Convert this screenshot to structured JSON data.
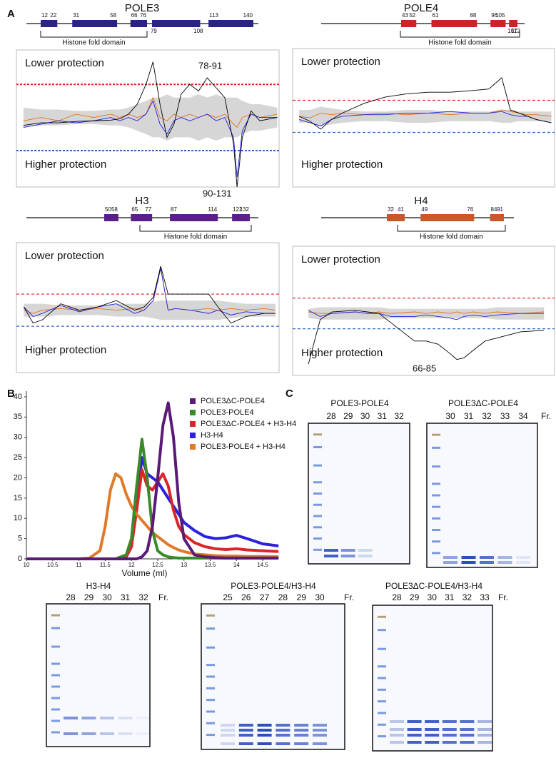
{
  "panel_labels": [
    "A",
    "B",
    "C"
  ],
  "chart_data": [
    {
      "type": "line",
      "title": "POLE3",
      "domains": [
        [
          12,
          22
        ],
        [
          31,
          58
        ],
        [
          66,
          76
        ],
        [
          79,
          108
        ],
        [
          113,
          140
        ]
      ],
      "domain_color": "#2b2382",
      "fold_label": "Histone fold domain",
      "upper_label": "Lower protection",
      "lower_label": "Higher protection",
      "annotations": [
        "78-91",
        "90-131"
      ],
      "x": [
        0,
        10,
        20,
        30,
        40,
        50,
        55,
        60,
        65,
        70,
        74,
        78,
        82,
        86,
        90,
        95,
        100,
        105,
        110,
        115,
        120,
        122,
        125,
        130,
        135,
        145
      ],
      "xlim": [
        -4,
        146
      ],
      "ylim": [
        -1.05,
        1.02
      ],
      "thresholds": [
        {
          "value": 0.5,
          "color": "#e02020"
        },
        {
          "value": -0.5,
          "color": "#2a66c0"
        }
      ],
      "band": {
        "color": "#d6d6d6",
        "values": [
          0.15,
          0.12,
          0.12,
          0.1,
          0.1,
          0.12,
          0.12,
          0.15,
          0.2,
          0.25,
          0.3,
          0.3,
          0.35,
          0.3,
          0.3,
          0.3,
          0.35,
          0.3,
          0.35,
          0.3,
          0.3,
          0.3,
          0.25,
          0.2,
          0.2,
          0.15
        ]
      },
      "series": [
        {
          "color": "#e8701e",
          "values": [
            -0.05,
            0.0,
            -0.05,
            0.05,
            0.0,
            0.05,
            0.0,
            0.05,
            0.0,
            0.05,
            0.3,
            0.0,
            -0.05,
            0.05,
            0.0,
            0.05,
            0.0,
            0.05,
            0.0,
            0.05,
            -0.1,
            -0.15,
            0.0,
            0.05,
            0.0,
            0.05
          ]
        },
        {
          "color": "#2020e0",
          "values": [
            -0.15,
            -0.1,
            -0.05,
            -0.08,
            -0.05,
            0.0,
            -0.05,
            0.0,
            -0.05,
            0.05,
            0.25,
            -0.1,
            -0.25,
            -0.05,
            0.0,
            -0.05,
            0.0,
            0.05,
            -0.05,
            0.0,
            -0.3,
            -0.9,
            -0.2,
            0.05,
            0.0,
            0.0
          ]
        },
        {
          "color": "#000000",
          "values": [
            -0.12,
            -0.08,
            -0.08,
            -0.06,
            -0.05,
            -0.04,
            -0.02,
            0.05,
            0.2,
            0.5,
            0.84,
            0.2,
            -0.3,
            -0.1,
            0.35,
            0.5,
            0.4,
            0.6,
            0.45,
            0.3,
            -0.4,
            -1.05,
            -0.3,
            0.1,
            -0.05,
            0.0
          ]
        }
      ]
    },
    {
      "type": "line",
      "title": "POLE4",
      "domains": [
        [
          43,
          52
        ],
        [
          61,
          88
        ],
        [
          96,
          105
        ],
        [
          107,
          112
        ]
      ],
      "domain_color": "#c8252b",
      "fold_label": "Histone fold domain",
      "upper_label": "Lower protection",
      "lower_label": "Higher protection",
      "annotations": [],
      "x": [
        0,
        5,
        10,
        15,
        20,
        30,
        40,
        50,
        60,
        70,
        80,
        88,
        94,
        98,
        102,
        106,
        110,
        117
      ],
      "xlim": [
        -3,
        118.5
      ],
      "ylim": [
        -2.2,
        2.11
      ],
      "thresholds": [
        {
          "value": 0.5,
          "color": "#e02020"
        },
        {
          "value": -0.5,
          "color": "#2a66c0"
        }
      ],
      "band": {
        "color": "#d6d6d6",
        "values": [
          0.2,
          0.2,
          0.3,
          0.25,
          0.2,
          0.15,
          0.15,
          0.2,
          0.2,
          0.15,
          0.15,
          0.15,
          0.2,
          0.2,
          0.15,
          0.15,
          0.15,
          0.15
        ]
      },
      "series": [
        {
          "color": "#e8701e",
          "values": [
            0.0,
            -0.05,
            0.1,
            0.05,
            0.1,
            0.05,
            0.1,
            0.05,
            0.1,
            0.05,
            0.1,
            0.1,
            0.2,
            0.15,
            0.1,
            0.05,
            0.05,
            0.0
          ]
        },
        {
          "color": "#2020e0",
          "values": [
            -0.1,
            -0.2,
            -0.3,
            -0.1,
            0.0,
            0.05,
            0.05,
            0.1,
            0.1,
            0.15,
            0.1,
            0.1,
            0.15,
            0.05,
            0.0,
            0.0,
            -0.1,
            -0.2
          ]
        },
        {
          "color": "#000000",
          "values": [
            0.0,
            -0.15,
            -0.4,
            -0.1,
            0.1,
            0.4,
            0.6,
            0.7,
            0.75,
            0.75,
            0.8,
            0.85,
            1.2,
            0.2,
            0.1,
            0.0,
            -0.1,
            -0.2
          ]
        }
      ]
    },
    {
      "type": "line",
      "title": "H3",
      "domains": [
        [
          50,
          58
        ],
        [
          65,
          77
        ],
        [
          87,
          114
        ],
        [
          122,
          132
        ]
      ],
      "domain_color": "#5a1f8a",
      "fold_label": "Histone fold domain",
      "upper_label": "Lower protection",
      "lower_label": "Higher protection",
      "annotations": [],
      "x": [
        0,
        5,
        10,
        20,
        30,
        40,
        50,
        60,
        65,
        70,
        74,
        78,
        82,
        90,
        100,
        105,
        112,
        120,
        130,
        136
      ],
      "xlim": [
        -4,
        138
      ],
      "ylim": [
        -1.94,
        2.1
      ],
      "thresholds": [
        {
          "value": 0.5,
          "color": "#e02020"
        },
        {
          "value": -0.5,
          "color": "#2a66c0"
        }
      ],
      "band": {
        "color": "#d6d6d6",
        "values": [
          0.2,
          0.2,
          0.2,
          0.15,
          0.15,
          0.15,
          0.2,
          0.2,
          0.2,
          0.25,
          0.3,
          0.3,
          0.3,
          0.3,
          0.3,
          0.3,
          0.25,
          0.2,
          0.2,
          0.2
        ]
      },
      "series": [
        {
          "color": "#e8701e",
          "values": [
            0.0,
            -0.1,
            0.0,
            0.05,
            0.0,
            0.05,
            0.0,
            0.05,
            0.0,
            0.3,
            1.32,
            0.0,
            0.05,
            0.0,
            0.05,
            0.0,
            0.05,
            0.0,
            0.05,
            0.0
          ]
        },
        {
          "color": "#2020e0",
          "values": [
            0.1,
            -0.2,
            -0.1,
            0.15,
            -0.05,
            0.1,
            0.2,
            -0.1,
            0.0,
            0.3,
            1.3,
            0.0,
            0.05,
            0.0,
            -0.1,
            0.0,
            -0.15,
            -0.05,
            -0.1,
            -0.1
          ]
        },
        {
          "color": "#000000",
          "values": [
            0.1,
            -0.4,
            -0.3,
            0.2,
            0.0,
            0.1,
            0.3,
            0.0,
            0.1,
            0.4,
            1.37,
            0.5,
            0.5,
            0.5,
            0.5,
            0.1,
            -0.4,
            -0.2,
            -0.1,
            -0.1
          ]
        }
      ]
    },
    {
      "type": "line",
      "title": "H4",
      "domains": [
        [
          32,
          41
        ],
        [
          49,
          76
        ],
        [
          84,
          91
        ]
      ],
      "domain_color": "#c8582a",
      "fold_label": "Histone fold domain",
      "upper_label": "Lower protection",
      "lower_label": "Higher protection",
      "annotations": [
        "66-85"
      ],
      "x": [
        0,
        5,
        10,
        20,
        25,
        30,
        35,
        45,
        50,
        55,
        60,
        63,
        66,
        70,
        75,
        80,
        90,
        100
      ],
      "xlim": [
        -6.7,
        104.5
      ],
      "ylim": [
        -2.02,
        2.19
      ],
      "thresholds": [
        {
          "value": 0.5,
          "color": "#e02020"
        },
        {
          "value": -0.5,
          "color": "#2a66c0"
        }
      ],
      "band": {
        "color": "#d6d6d6",
        "values": [
          0.15,
          0.2,
          0.2,
          0.2,
          0.2,
          0.2,
          0.15,
          0.15,
          0.15,
          0.15,
          0.15,
          0.15,
          0.15,
          0.15,
          0.15,
          0.2,
          0.2,
          0.2
        ]
      },
      "series": [
        {
          "color": "#e8701e",
          "values": [
            0.05,
            0.0,
            0.0,
            0.05,
            0.0,
            0.05,
            0.0,
            0.05,
            0.0,
            0.05,
            0.0,
            0.05,
            0.0,
            0.05,
            0.0,
            0.05,
            0.0,
            0.05
          ]
        },
        {
          "color": "#2020e0",
          "values": [
            0.1,
            -0.1,
            0.0,
            0.05,
            0.0,
            0.0,
            -0.1,
            -0.1,
            -0.05,
            -0.1,
            -0.15,
            -0.2,
            -0.1,
            -0.05,
            -0.1,
            -0.05,
            0.0,
            0.0
          ]
        },
        {
          "color": "#000000",
          "values": [
            -1.65,
            -0.2,
            0.05,
            0.1,
            0.05,
            0.0,
            -0.3,
            -0.9,
            -0.9,
            -1.0,
            -1.3,
            -1.5,
            -1.45,
            -1.2,
            -0.9,
            -0.8,
            -0.6,
            -0.55
          ]
        }
      ]
    },
    {
      "type": "line",
      "xlabel": "Volume (ml)",
      "x": [
        10,
        10.5,
        11,
        11.2,
        11.4,
        11.5,
        11.6,
        11.7,
        11.8,
        11.9,
        12,
        12.1,
        12.2,
        12.3,
        12.4,
        12.5,
        12.6,
        12.7,
        12.8,
        12.9,
        13,
        13.2,
        13.4,
        13.6,
        13.8,
        14,
        14.2,
        14.5,
        14.8
      ],
      "xlim": [
        10,
        14.77
      ],
      "ylim": [
        0,
        41.4
      ],
      "xticks": [
        10,
        10.5,
        11,
        11.5,
        12,
        12.5,
        13,
        13.5,
        14,
        14.5
      ],
      "yticks": [
        0,
        5,
        10,
        15,
        20,
        25,
        30,
        35,
        40
      ],
      "series": [
        {
          "name": "POLE3ΔC-POLE4",
          "color": "#5a1a78",
          "values": [
            0,
            0,
            0,
            0,
            0,
            0,
            0,
            0,
            0,
            0,
            0,
            0,
            0.5,
            2,
            8,
            20,
            33,
            38.5,
            30,
            14,
            5,
            1,
            0.5,
            0.3,
            0.2,
            0.2,
            0.2,
            0.2,
            0.2
          ]
        },
        {
          "name": "POLE3-POLE4",
          "color": "#3a8a2a",
          "values": [
            0,
            0,
            0,
            0,
            0,
            0,
            0,
            0,
            0.5,
            1,
            5,
            18,
            29.5,
            20,
            7,
            2,
            1,
            0.5,
            0.3,
            0.2,
            0.2,
            0.2,
            0.2,
            0.2,
            0.2,
            0.2,
            0.2,
            0.2,
            0.2
          ]
        },
        {
          "name": "POLE3ΔC-POLE4 + H3-H4",
          "color": "#d9262b",
          "values": [
            0,
            0,
            0,
            0,
            0,
            0,
            0,
            0,
            0.2,
            0.5,
            3,
            12,
            22,
            18,
            17,
            19,
            21,
            18,
            12,
            8,
            6,
            4,
            3,
            2.5,
            2.3,
            2.5,
            2.2,
            2,
            1.8
          ]
        },
        {
          "name": "H3-H4",
          "color": "#2b20e0",
          "values": [
            0,
            0,
            0,
            0,
            0,
            0,
            0,
            0,
            0.2,
            0.5,
            3,
            14,
            25,
            21,
            20,
            19,
            17,
            15,
            13,
            11,
            9,
            7,
            5.5,
            5,
            5.2,
            5.8,
            5,
            3.7,
            3.2
          ]
        },
        {
          "name": "POLE3-POLE4 + H3-H4",
          "color": "#e07a2a",
          "values": [
            0,
            0,
            0,
            0.2,
            2,
            8,
            17,
            21,
            20,
            16,
            13,
            11,
            9.5,
            8,
            6.5,
            5.5,
            4.5,
            3.5,
            2.8,
            2.2,
            1.8,
            1.2,
            1,
            0.8,
            0.7,
            0.7,
            0.6,
            0.6,
            0.5
          ]
        }
      ]
    }
  ],
  "gels": [
    {
      "title": "POLE3-POLE4",
      "lanes": [
        "28",
        "29",
        "30",
        "31",
        "32"
      ]
    },
    {
      "title": "POLE3ΔC-POLE4",
      "lanes": [
        "30",
        "31",
        "32",
        "33",
        "34"
      ],
      "fraction_label": "Fr."
    },
    {
      "title": "H3-H4",
      "lanes": [
        "28",
        "29",
        "30",
        "31",
        "32"
      ],
      "fraction_label": "Fr."
    },
    {
      "title": "POLE3-POLE4/H3-H4",
      "lanes": [
        "25",
        "26",
        "27",
        "28",
        "29",
        "30"
      ],
      "fraction_label": "Fr."
    },
    {
      "title": "POLE3ΔC-POLE4/H3-H4",
      "lanes": [
        "28",
        "29",
        "30",
        "31",
        "32",
        "33"
      ],
      "fraction_label": "Fr."
    }
  ]
}
